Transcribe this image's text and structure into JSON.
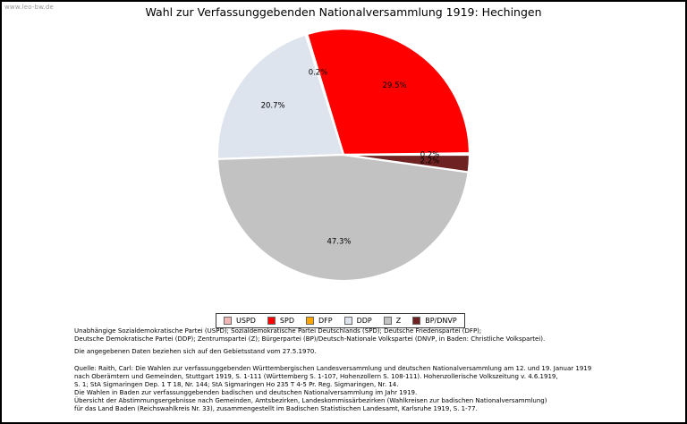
{
  "watermark": "www.leo-bw.de",
  "title": "Wahl zur Verfassunggebenden Nationalversammlung 1919: Hechingen",
  "chart_data": {
    "type": "pie",
    "title": "Wahl zur Verfassunggebenden Nationalversammlung 1919: Hechingen",
    "categories": [
      "USPD",
      "SPD",
      "DFP",
      "DDP",
      "Z",
      "BP/DNVP"
    ],
    "values": [
      0.2,
      29.5,
      0.2,
      20.7,
      47.3,
      2.2
    ],
    "colors": [
      "#f2b8b8",
      "#ff0000",
      "#ffa500",
      "#dde4ee",
      "#c2c2c2",
      "#6e2222"
    ],
    "slice_labels": [
      "0.2%",
      "29.5%",
      "0.2%",
      "20.7%",
      "47.3%",
      "2.2%"
    ],
    "unit": "%",
    "start_angle": 0,
    "direction": "counterclockwise",
    "legend_position": "bottom",
    "label_format": "percent",
    "pct_label_distance": 0.685,
    "slice_border_color": "#ffffff"
  },
  "footer": {
    "party_lines": [
      "Unabhängige Sozialdemokratische Partei (USPD); Sozialdemokratische Partei Deutschlands (SPD); Deutsche Friedenspartei (DFP);",
      "Deutsche Demokratische Partei (DDP); Zentrumspartei (Z); Bürgerpartei (BP)/Deutsch-Nationale Volkspartei (DNVP, in Baden: Christliche Volkspartei)."
    ],
    "basis": "Die angegebenen Daten beziehen sich auf den Gebietsstand vom 27.5.1970.",
    "source_lines": [
      "Quelle: Raith, Carl: Die Wahlen zur verfassunggebenden Württembergischen Landesversammlung und deutschen Nationalversammlung am 12. und 19. Januar 1919",
      "nach Oberämtern und Gemeinden, Stuttgart 1919, S. 1-111 (Württemberg S. 1-107, Hohenzollern S. 108-111). Hohenzollerische Volkszeitung v. 4.6.1919,",
      "S. 1; StA Sigmaringen Dep. 1 T 18, Nr. 144; StA Sigmaringen Ho 235 T 4-5 Pr. Reg. Sigmaringen, Nr. 14.",
      "Die Wahlen in Baden zur verfassunggebenden badischen und deutschen Nationalversammlung im Jahr 1919.",
      "Übersicht der Abstimmungsergebnisse nach Gemeinden, Amtsbezirken, Landeskommissärbezirken (Wahlkreisen zur badischen Nationalversammlung)",
      "für das Land Baden (Reichswahlkreis Nr. 33), zusammengestellt im Badischen Statistischen Landesamt, Karlsruhe 1919, S. 1-77."
    ]
  }
}
